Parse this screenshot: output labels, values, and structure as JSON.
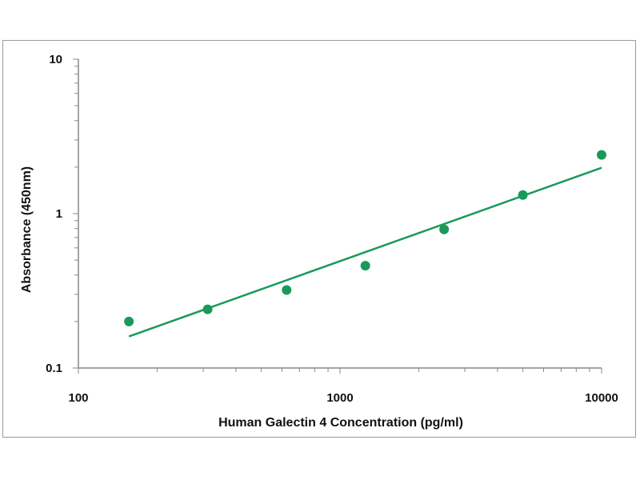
{
  "chart_data": {
    "type": "scatter",
    "title": "",
    "xlabel": "Human Galectin 4 Concentration (pg/ml)",
    "ylabel": "Absorbance (450nm)",
    "x_scale": "log",
    "y_scale": "log",
    "xlim": [
      100,
      10000
    ],
    "ylim": [
      0.1,
      10
    ],
    "x_ticks": [
      "100",
      "1000",
      "10000"
    ],
    "y_ticks": [
      "0.1",
      "1",
      "10"
    ],
    "grid": false,
    "legend": "none",
    "series": [
      {
        "type": "scatter",
        "color": "#1a9a5a",
        "x": [
          156,
          312,
          625,
          1250,
          2500,
          5000,
          10000
        ],
        "y": [
          0.2,
          0.24,
          0.32,
          0.46,
          0.79,
          1.32,
          2.4
        ]
      },
      {
        "type": "line",
        "color": "#1a9a5a",
        "x": [
          156,
          10000
        ],
        "y": [
          0.16,
          1.98
        ]
      }
    ]
  }
}
